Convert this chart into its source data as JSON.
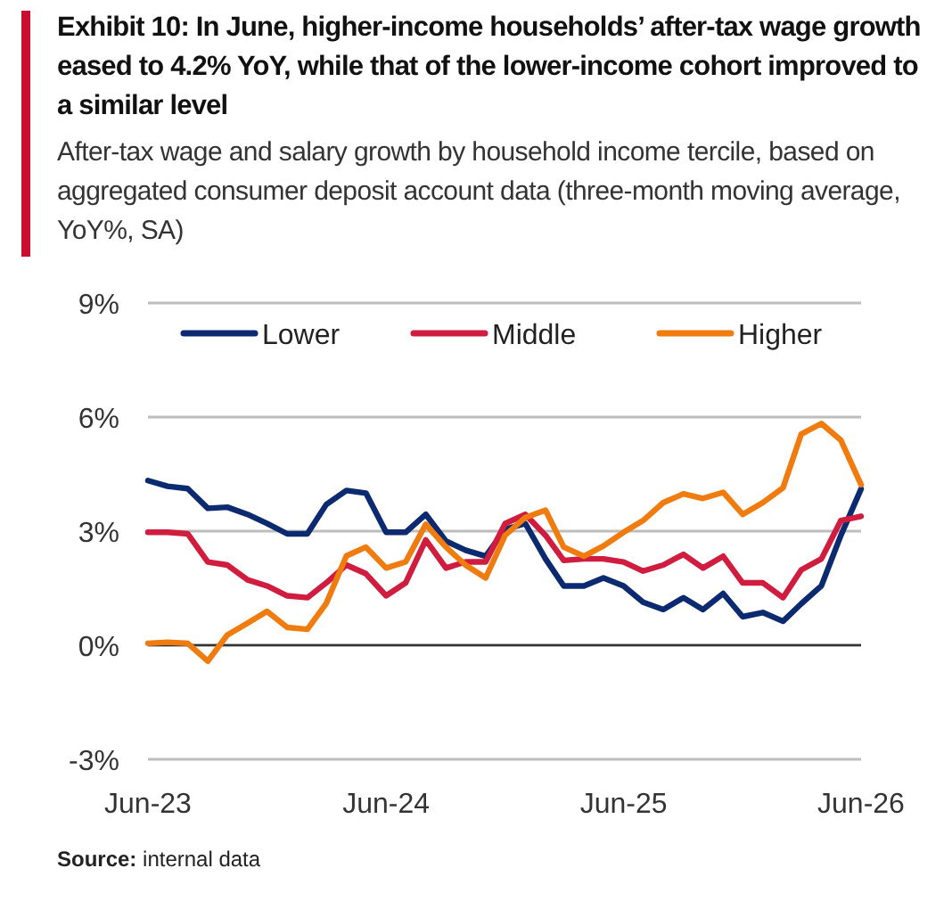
{
  "chart_data": {
    "type": "line",
    "title": "Exhibit 10: In June, higher-income households’ after-tax wage growth eased to 4.2% YoY, while that of the lower-income cohort improved to a similar level",
    "subtitle": "After-tax wage and salary growth by household income tercile, based on aggregated consumer deposit account data (three-month moving average, YoY%, SA)",
    "x": [
      "2023-06",
      "2023-07",
      "2023-08",
      "2023-09",
      "2023-10",
      "2023-11",
      "2023-12",
      "2024-01",
      "2024-02",
      "2024-03",
      "2024-04",
      "2024-05",
      "2024-06",
      "2024-07",
      "2024-08",
      "2024-09",
      "2024-10",
      "2024-11",
      "2024-12",
      "2025-01",
      "2025-02",
      "2025-03",
      "2025-04",
      "2025-05",
      "2025-06",
      "2025-07",
      "2025-08",
      "2025-09",
      "2025-10",
      "2025-11",
      "2025-12",
      "2026-01",
      "2026-02",
      "2026-03",
      "2026-04",
      "2026-05",
      "2026-06"
    ],
    "series": [
      {
        "name": "Lower",
        "color": "#0b2a6f",
        "values": [
          4.33,
          4.18,
          4.12,
          3.6,
          3.63,
          3.44,
          3.2,
          2.93,
          2.93,
          3.7,
          4.07,
          4.0,
          2.97,
          2.97,
          3.44,
          2.74,
          2.5,
          2.34,
          3.05,
          3.2,
          2.27,
          1.56,
          1.56,
          1.77,
          1.56,
          1.13,
          0.94,
          1.25,
          0.94,
          1.36,
          0.75,
          0.86,
          0.63,
          1.09,
          1.56,
          2.89,
          4.11
        ]
      },
      {
        "name": "Middle",
        "color": "#d01c3f",
        "values": [
          2.97,
          2.97,
          2.93,
          2.19,
          2.11,
          1.72,
          1.56,
          1.3,
          1.25,
          1.64,
          2.11,
          1.88,
          1.3,
          1.64,
          2.77,
          2.03,
          2.19,
          2.19,
          3.2,
          3.44,
          2.89,
          2.23,
          2.27,
          2.27,
          2.19,
          1.95,
          2.11,
          2.39,
          2.03,
          2.34,
          1.64,
          1.64,
          1.25,
          1.98,
          2.27,
          3.28,
          3.39
        ]
      },
      {
        "name": "Higher",
        "color": "#f07b0e",
        "values": [
          0.05,
          0.08,
          0.05,
          -0.42,
          0.27,
          0.58,
          0.89,
          0.47,
          0.42,
          1.1,
          2.35,
          2.58,
          2.03,
          2.19,
          3.18,
          2.58,
          2.11,
          1.77,
          2.89,
          3.36,
          3.55,
          2.58,
          2.34,
          2.61,
          2.97,
          3.28,
          3.75,
          3.98,
          3.86,
          4.02,
          3.44,
          3.75,
          4.14,
          5.55,
          5.83,
          5.39,
          4.22
        ]
      }
    ],
    "xlim": [
      "2023-06",
      "2026-06"
    ],
    "xticks": [
      {
        "value": "2023-06",
        "label": "Jun-23"
      },
      {
        "value": "2024-06",
        "label": "Jun-24"
      },
      {
        "value": "2025-06",
        "label": "Jun-25"
      },
      {
        "value": "2026-06",
        "label": "Jun-26"
      }
    ],
    "ylim": [
      -3,
      9
    ],
    "yticks": [
      {
        "value": -3,
        "label": "-3%"
      },
      {
        "value": 0,
        "label": "0%"
      },
      {
        "value": 3,
        "label": "3%"
      },
      {
        "value": 6,
        "label": "6%"
      },
      {
        "value": 9,
        "label": "9%"
      }
    ],
    "grid": "y",
    "ref_lines": [
      {
        "axis": "y",
        "value": 0,
        "color": "#333333"
      }
    ],
    "legend": "top left",
    "annotations": [
      "Source: internal data"
    ]
  }
}
